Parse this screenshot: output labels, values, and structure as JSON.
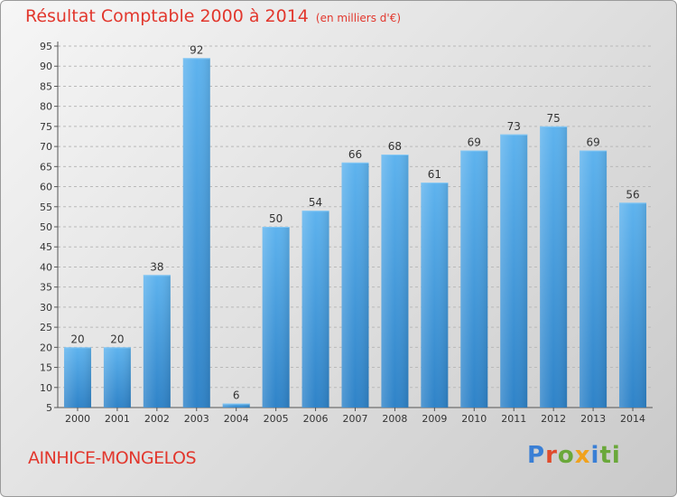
{
  "header": {
    "title": "Résultat Comptable 2000 à 2014",
    "unit": "(en milliers d'€)"
  },
  "commune": "AINHICE-MONGELOS",
  "logo": {
    "text": "Proxiti",
    "letters": [
      "P",
      "r",
      "o",
      "x",
      "i",
      "ti"
    ]
  },
  "colors": {
    "bar_light": "#5eb3ee",
    "bar_dark": "#2f83c8",
    "title": "#e2372d"
  },
  "chart_data": {
    "type": "bar",
    "title": "Résultat Comptable 2000 à 2014",
    "subtitle": "(en milliers d'€)",
    "categories": [
      "2000",
      "2001",
      "2002",
      "2003",
      "2004",
      "2005",
      "2006",
      "2007",
      "2008",
      "2009",
      "2010",
      "2011",
      "2012",
      "2013",
      "2014"
    ],
    "values": [
      20,
      20,
      38,
      92,
      6,
      50,
      54,
      66,
      68,
      61,
      69,
      73,
      75,
      69,
      56
    ],
    "ylim": [
      5,
      95
    ],
    "yticks": [
      5,
      10,
      15,
      20,
      25,
      30,
      35,
      40,
      45,
      50,
      55,
      60,
      65,
      70,
      75,
      80,
      85,
      90,
      95
    ],
    "grid": true,
    "xlabel": "",
    "ylabel": ""
  }
}
